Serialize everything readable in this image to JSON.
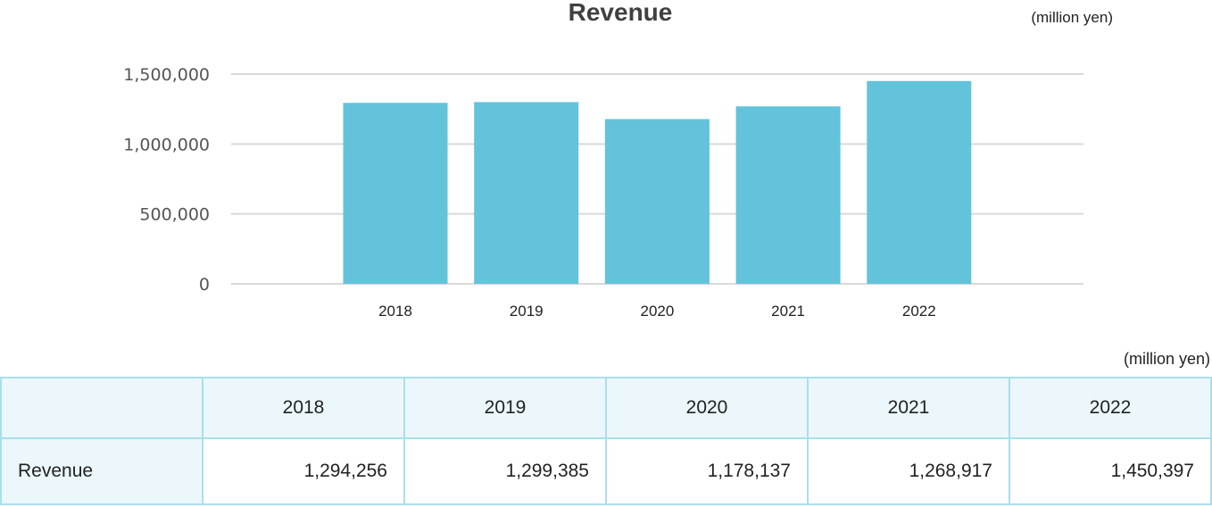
{
  "chart_data": {
    "type": "bar",
    "title": "Revenue",
    "unit": "(million yen)",
    "categories": [
      "2018",
      "2019",
      "2020",
      "2021",
      "2022"
    ],
    "values": [
      1294256,
      1299385,
      1178137,
      1268917,
      1450397
    ],
    "ylim": [
      0,
      1500000
    ],
    "yticks": [
      0,
      500000,
      1000000,
      1500000
    ],
    "ytick_labels": [
      "0",
      "500,000",
      "1,000,000",
      "1,500,000"
    ],
    "grid": true,
    "bar_color": "#62c3da"
  },
  "table": {
    "unit": "(million yen)",
    "headers": [
      "",
      "2018",
      "2019",
      "2020",
      "2021",
      "2022"
    ],
    "rows": [
      {
        "label": "Revenue",
        "values": [
          "1,294,256",
          "1,299,385",
          "1,178,137",
          "1,268,917",
          "1,450,397"
        ]
      }
    ]
  }
}
